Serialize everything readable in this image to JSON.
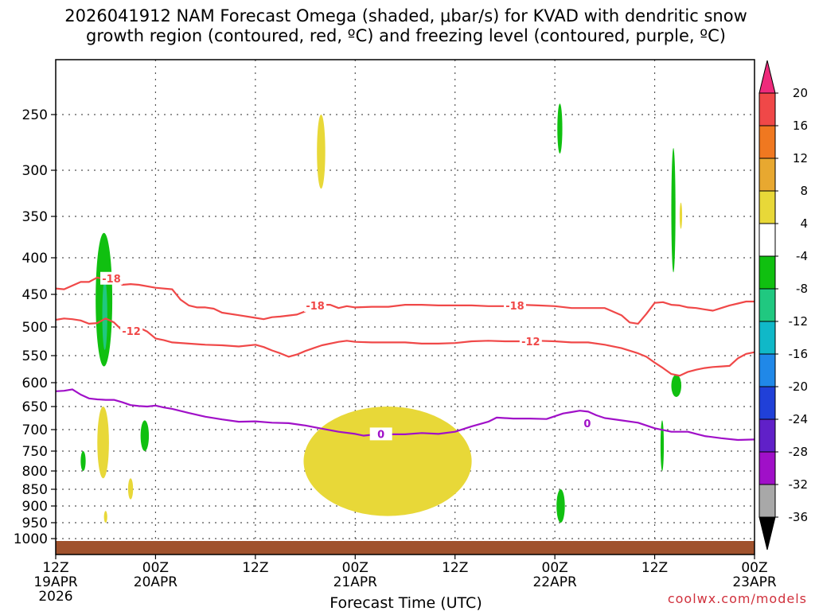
{
  "chart_data": {
    "type": "time-height cross section",
    "title_line1": "2026041912 NAM Forecast Omega (shaded, μbar/s) for KVAD with dendritic snow",
    "title_line2": "growth region (contoured, red, ºC) and freezing level (contoured, purple, ºC)",
    "xlabel": "Forecast Time (UTC)",
    "credit": "coolwx.com/models",
    "x_range_hours": [
      0,
      84
    ],
    "y_range_hpa": [
      1030,
      200
    ],
    "y_ticks": [
      "250",
      "300",
      "350",
      "400",
      "450",
      "500",
      "550",
      "600",
      "650",
      "700",
      "750",
      "800",
      "850",
      "900",
      "950",
      "1000"
    ],
    "x_ticks": [
      {
        "hour": 0,
        "line1": "12Z",
        "line2": "19APR",
        "line3": "2026"
      },
      {
        "hour": 12,
        "line1": "00Z",
        "line2": "20APR",
        "line3": ""
      },
      {
        "hour": 24,
        "line1": "12Z",
        "line2": "",
        "line3": ""
      },
      {
        "hour": 36,
        "line1": "00Z",
        "line2": "21APR",
        "line3": ""
      },
      {
        "hour": 48,
        "line1": "12Z",
        "line2": "",
        "line3": ""
      },
      {
        "hour": 60,
        "line1": "00Z",
        "line2": "22APR",
        "line3": ""
      },
      {
        "hour": 72,
        "line1": "12Z",
        "line2": "",
        "line3": ""
      },
      {
        "hour": 84,
        "line1": "00Z",
        "line2": "23APR",
        "line3": ""
      }
    ],
    "colorbar": {
      "labels": [
        "20",
        "16",
        "12",
        "8",
        "4",
        "-4",
        "-8",
        "-12",
        "-16",
        "-20",
        "-24",
        "-28",
        "-32",
        "-36"
      ],
      "colors": [
        "#ee2a7b",
        "#f04848",
        "#f07820",
        "#e8a830",
        "#e8d838",
        "#ffffff",
        "#10c010",
        "#20c880",
        "#10b8c8",
        "#2088e8",
        "#2040d8",
        "#6020c8",
        "#a010c8",
        "#a8a8a8",
        "#000000"
      ]
    },
    "series": [
      {
        "name": "-18",
        "color": "#f04848",
        "points": [
          [
            0,
            442
          ],
          [
            1,
            443
          ],
          [
            2,
            438
          ],
          [
            3,
            433
          ],
          [
            4,
            433
          ],
          [
            5,
            427
          ],
          [
            6,
            430
          ],
          [
            7,
            428
          ],
          [
            8,
            437
          ],
          [
            9,
            436
          ],
          [
            10,
            437
          ],
          [
            12,
            441
          ],
          [
            14,
            443
          ],
          [
            15,
            458
          ],
          [
            16,
            467
          ],
          [
            17,
            470
          ],
          [
            18,
            470
          ],
          [
            19,
            472
          ],
          [
            20,
            478
          ],
          [
            22,
            482
          ],
          [
            24,
            486
          ],
          [
            25,
            488
          ],
          [
            26,
            485
          ],
          [
            27,
            484
          ],
          [
            29,
            481
          ],
          [
            30,
            476
          ],
          [
            31,
            469
          ],
          [
            32,
            466
          ],
          [
            33,
            466
          ],
          [
            34,
            471
          ],
          [
            35,
            468
          ],
          [
            36,
            470
          ],
          [
            38,
            469
          ],
          [
            40,
            469
          ],
          [
            42,
            466
          ],
          [
            44,
            466
          ],
          [
            46,
            467
          ],
          [
            48,
            467
          ],
          [
            50,
            467
          ],
          [
            52,
            468
          ],
          [
            54,
            468
          ],
          [
            56,
            466
          ],
          [
            58,
            467
          ],
          [
            60,
            468
          ],
          [
            62,
            471
          ],
          [
            64,
            471
          ],
          [
            66,
            471
          ],
          [
            68,
            482
          ],
          [
            69,
            493
          ],
          [
            70,
            495
          ],
          [
            71,
            480
          ],
          [
            72,
            463
          ],
          [
            73,
            462
          ],
          [
            74,
            466
          ],
          [
            75,
            467
          ],
          [
            76,
            470
          ],
          [
            77,
            471
          ],
          [
            78,
            473
          ],
          [
            79,
            475
          ],
          [
            80,
            471
          ],
          [
            81,
            467
          ],
          [
            82,
            464
          ],
          [
            83,
            461
          ],
          [
            84,
            461
          ]
        ]
      },
      {
        "name": "-12",
        "color": "#f04848",
        "points": [
          [
            0,
            489
          ],
          [
            1,
            487
          ],
          [
            2,
            488
          ],
          [
            3,
            490
          ],
          [
            4,
            495
          ],
          [
            5,
            494
          ],
          [
            6,
            487
          ],
          [
            7,
            493
          ],
          [
            8,
            506
          ],
          [
            8.6,
            510
          ],
          [
            9,
            505
          ],
          [
            10,
            501
          ],
          [
            11,
            508
          ],
          [
            12,
            520
          ],
          [
            13,
            523
          ],
          [
            14,
            527
          ],
          [
            16,
            529
          ],
          [
            18,
            531
          ],
          [
            20,
            532
          ],
          [
            22,
            534
          ],
          [
            24,
            531
          ],
          [
            25,
            535
          ],
          [
            26,
            541
          ],
          [
            27,
            546
          ],
          [
            28,
            552
          ],
          [
            29,
            548
          ],
          [
            30,
            542
          ],
          [
            31,
            537
          ],
          [
            32,
            532
          ],
          [
            34,
            526
          ],
          [
            35,
            524
          ],
          [
            36,
            526
          ],
          [
            38,
            527
          ],
          [
            40,
            527
          ],
          [
            42,
            527
          ],
          [
            44,
            529
          ],
          [
            46,
            529
          ],
          [
            48,
            528
          ],
          [
            50,
            525
          ],
          [
            52,
            524
          ],
          [
            54,
            525
          ],
          [
            56,
            525
          ],
          [
            58,
            524
          ],
          [
            60,
            525
          ],
          [
            62,
            527
          ],
          [
            64,
            527
          ],
          [
            66,
            531
          ],
          [
            68,
            537
          ],
          [
            70,
            546
          ],
          [
            71,
            552
          ],
          [
            72,
            563
          ],
          [
            73,
            573
          ],
          [
            74,
            584
          ],
          [
            75,
            587
          ],
          [
            76,
            580
          ],
          [
            77,
            576
          ],
          [
            78,
            573
          ],
          [
            79,
            571
          ],
          [
            80,
            570
          ],
          [
            81,
            569
          ],
          [
            82,
            555
          ],
          [
            83,
            547
          ],
          [
            84,
            544
          ]
        ]
      },
      {
        "name": "0",
        "color": "#a010c8",
        "points": [
          [
            0,
            618
          ],
          [
            1,
            617
          ],
          [
            2,
            614
          ],
          [
            3,
            625
          ],
          [
            4,
            633
          ],
          [
            5,
            635
          ],
          [
            6,
            636
          ],
          [
            7,
            636
          ],
          [
            8,
            641
          ],
          [
            9,
            647
          ],
          [
            10,
            649
          ],
          [
            11,
            650
          ],
          [
            12,
            648
          ],
          [
            13,
            652
          ],
          [
            14,
            655
          ],
          [
            16,
            664
          ],
          [
            18,
            672
          ],
          [
            20,
            678
          ],
          [
            22,
            683
          ],
          [
            24,
            682
          ],
          [
            26,
            685
          ],
          [
            28,
            686
          ],
          [
            30,
            691
          ],
          [
            32,
            698
          ],
          [
            34,
            705
          ],
          [
            36,
            710
          ],
          [
            37,
            714
          ],
          [
            38,
            712
          ],
          [
            40,
            711
          ],
          [
            42,
            711
          ],
          [
            44,
            708
          ],
          [
            46,
            710
          ],
          [
            48,
            705
          ],
          [
            50,
            693
          ],
          [
            52,
            683
          ],
          [
            53,
            674
          ],
          [
            55,
            676
          ],
          [
            57,
            676
          ],
          [
            59,
            677
          ],
          [
            60,
            671
          ],
          [
            61,
            665
          ],
          [
            62,
            662
          ],
          [
            63,
            659
          ],
          [
            64,
            661
          ],
          [
            65,
            669
          ],
          [
            66,
            675
          ],
          [
            68,
            680
          ],
          [
            70,
            685
          ],
          [
            72,
            697
          ],
          [
            74,
            705
          ],
          [
            76,
            705
          ],
          [
            77,
            710
          ],
          [
            78,
            715
          ],
          [
            80,
            720
          ],
          [
            82,
            724
          ],
          [
            84,
            723
          ]
        ]
      }
    ],
    "contour_labels": [
      {
        "text": "-18",
        "hour": 6.7,
        "hpa": 428,
        "color": "#f04848"
      },
      {
        "text": "-18",
        "hour": 31.2,
        "hpa": 467,
        "color": "#f04848"
      },
      {
        "text": "-18",
        "hour": 55.2,
        "hpa": 467,
        "color": "#f04848"
      },
      {
        "text": "-12",
        "hour": 9.1,
        "hpa": 507,
        "color": "#f04848"
      },
      {
        "text": "-12",
        "hour": 57.1,
        "hpa": 525,
        "color": "#f04848"
      },
      {
        "text": "0",
        "hour": 39.1,
        "hpa": 710,
        "color": "#a010c8"
      },
      {
        "text": "0",
        "hour": 63.9,
        "hpa": 686,
        "color": "#a010c8"
      }
    ],
    "omega_shaded": [
      {
        "band": "4 to 8",
        "color": "#e8d838",
        "hour_range": [
          31.4,
          32.4
        ],
        "hpa_range": [
          250,
          320
        ]
      },
      {
        "band": "4 to 8",
        "color": "#e8d838",
        "hour_range": [
          5.0,
          6.4
        ],
        "hpa_range": [
          650,
          820
        ]
      },
      {
        "band": "4 to 8",
        "color": "#e8d838",
        "hour_range": [
          8.7,
          9.3
        ],
        "hpa_range": [
          820,
          880
        ]
      },
      {
        "band": "4 to 8",
        "color": "#e8d838",
        "hour_range": [
          5.8,
          6.2
        ],
        "hpa_range": [
          915,
          950
        ]
      },
      {
        "band": "4 to 8",
        "color": "#e8d838",
        "hour_range": [
          29.8,
          50.0
        ],
        "hpa_range": [
          650,
          930
        ]
      },
      {
        "band": "4 to 8",
        "color": "#e8d838",
        "hour_range": [
          75.0,
          75.3
        ],
        "hpa_range": [
          335,
          365
        ]
      },
      {
        "band": "-4 to -8",
        "color": "#10c010",
        "hour_range": [
          4.8,
          6.8
        ],
        "hpa_range": [
          370,
          570
        ]
      },
      {
        "band": "-8 to -12",
        "color": "#20c880",
        "hour_range": [
          5.6,
          6.2
        ],
        "hpa_range": [
          430,
          540
        ]
      },
      {
        "band": "-4 to -8",
        "color": "#10c010",
        "hour_range": [
          10.2,
          11.2
        ],
        "hpa_range": [
          680,
          750
        ]
      },
      {
        "band": "-4 to -8",
        "color": "#10c010",
        "hour_range": [
          3.0,
          3.6
        ],
        "hpa_range": [
          750,
          800
        ]
      },
      {
        "band": "-4 to -8",
        "color": "#10c010",
        "hour_range": [
          60.3,
          60.9
        ],
        "hpa_range": [
          240,
          285
        ]
      },
      {
        "band": "-4 to -8",
        "color": "#10c010",
        "hour_range": [
          74.0,
          74.5
        ],
        "hpa_range": [
          280,
          420
        ]
      },
      {
        "band": "-4 to -8",
        "color": "#10c010",
        "hour_range": [
          74.0,
          75.2
        ],
        "hpa_range": [
          585,
          630
        ]
      },
      {
        "band": "-4 to -8",
        "color": "#10c010",
        "hour_range": [
          72.7,
          73.1
        ],
        "hpa_range": [
          680,
          800
        ]
      },
      {
        "band": "-4 to -8",
        "color": "#10c010",
        "hour_range": [
          60.2,
          61.2
        ],
        "hpa_range": [
          850,
          950
        ]
      }
    ],
    "terrain_color": "#a0522d",
    "grid": true
  }
}
